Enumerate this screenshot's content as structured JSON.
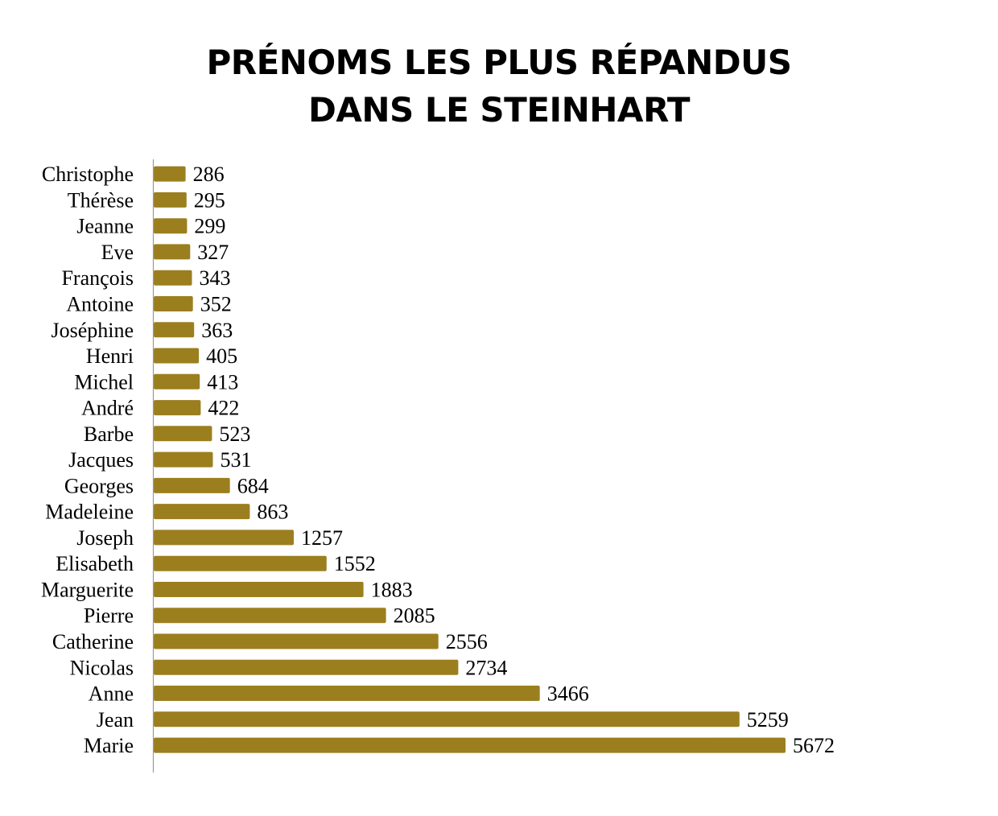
{
  "chart_data": {
    "type": "bar",
    "orientation": "horizontal",
    "title": [
      "PRÉNOMS LES PLUS RÉPANDUS",
      "DANS LE STEINHART"
    ],
    "categories": [
      "Christophe",
      "Thérèse",
      "Jeanne",
      "Eve",
      "François",
      "Antoine",
      "Joséphine",
      "Henri",
      "Michel",
      "André",
      "Barbe",
      "Jacques",
      "Georges",
      "Madeleine",
      "Joseph",
      "Elisabeth",
      "Marguerite",
      "Pierre",
      "Catherine",
      "Nicolas",
      "Anne",
      "Jean",
      "Marie"
    ],
    "values": [
      286,
      295,
      299,
      327,
      343,
      352,
      363,
      405,
      413,
      422,
      523,
      531,
      684,
      863,
      1257,
      1552,
      1883,
      2085,
      2556,
      2734,
      3466,
      5259,
      5672
    ],
    "xlim": [
      0,
      6000
    ],
    "grid": false,
    "legend": "none",
    "data_labels": true,
    "colors": {
      "bar": "#9b7f1f",
      "axis": "#999999",
      "text": "#000000"
    }
  }
}
